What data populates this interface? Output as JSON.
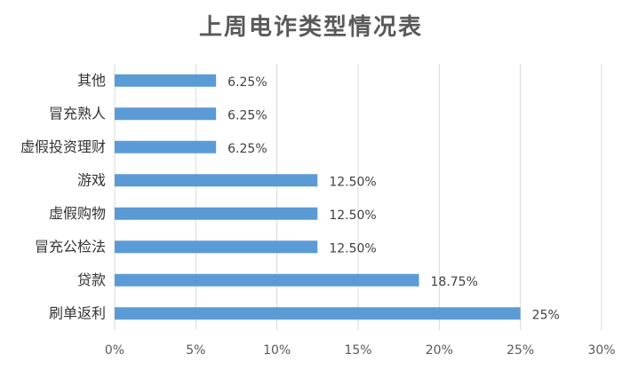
{
  "chart_data": {
    "type": "bar",
    "orientation": "horizontal",
    "title": "上周电诈类型情况表",
    "categories": [
      "其他",
      "冒充熟人",
      "虚假投资理财",
      "游戏",
      "虚假购物",
      "冒充公检法",
      "贷款",
      "刷单返利"
    ],
    "values": [
      6.25,
      6.25,
      6.25,
      12.5,
      12.5,
      12.5,
      18.75,
      25
    ],
    "data_labels": [
      "6.25%",
      "6.25%",
      "6.25%",
      "12.50%",
      "12.50%",
      "12.50%",
      "18.75%",
      "25%"
    ],
    "xlim": [
      0,
      30
    ],
    "x_ticks": [
      0,
      5,
      10,
      15,
      20,
      25,
      30
    ],
    "x_tick_labels": [
      "0%",
      "5%",
      "10%",
      "15%",
      "20%",
      "25%",
      "30%"
    ],
    "grid": "vertical",
    "bar_color": "#5B9BD5",
    "grid_color": "#D9D9D9",
    "legend": "none"
  }
}
